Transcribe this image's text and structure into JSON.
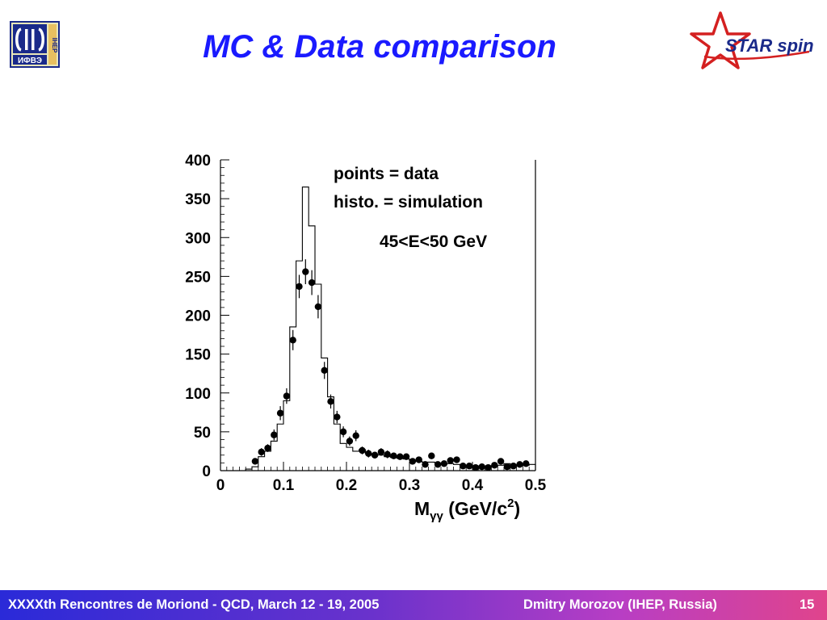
{
  "slide": {
    "title": "MC & Data comparison",
    "title_color": "#1a1aff",
    "ihep_logo_text": "ИФВЭ",
    "ihep_logo_side_text": "IHEP",
    "star_logo_text": "STAR spin",
    "star_logo_color": "#d42020",
    "star_text_color": "#1a2a8a"
  },
  "footer": {
    "left_text": "XXXXth Rencontres de Moriond - QCD, March 12 - 19, 2005",
    "right_text": "Dmitry Morozov (IHEP, Russia)",
    "page_number": "15"
  },
  "chart_data": {
    "type": "histogram",
    "xlabel_main": "M",
    "xlabel_sub": "γγ",
    "xlabel_unit": " (GeV/c",
    "xlabel_sup": "2",
    "xlabel_close": ")",
    "xlim": [
      0,
      0.5
    ],
    "ylim": [
      0,
      400
    ],
    "xticks": [
      "0",
      "0.1",
      "0.2",
      "0.3",
      "0.4",
      "0.5"
    ],
    "yticks": [
      "0",
      "50",
      "100",
      "150",
      "200",
      "250",
      "300",
      "350",
      "400"
    ],
    "grid": false,
    "legend": [
      {
        "text": "points = data"
      },
      {
        "text": "histo. = simulation"
      }
    ],
    "annotation": "45<E<50 GeV",
    "series": [
      {
        "name": "data",
        "kind": "points",
        "x": [
          0.055,
          0.065,
          0.075,
          0.085,
          0.095,
          0.105,
          0.115,
          0.125,
          0.135,
          0.145,
          0.155,
          0.165,
          0.175,
          0.185,
          0.195,
          0.205,
          0.215,
          0.225,
          0.235,
          0.245,
          0.255,
          0.265,
          0.275,
          0.285,
          0.295,
          0.305,
          0.315,
          0.325,
          0.335,
          0.345,
          0.355,
          0.365,
          0.375,
          0.385,
          0.395,
          0.405,
          0.415,
          0.425,
          0.435,
          0.445,
          0.455,
          0.465,
          0.475,
          0.485
        ],
        "y": [
          12,
          24,
          29,
          46,
          74,
          96,
          168,
          237,
          256,
          242,
          211,
          129,
          89,
          69,
          50,
          38,
          45,
          26,
          22,
          20,
          24,
          21,
          19,
          18,
          18,
          12,
          14,
          8,
          19,
          8,
          9,
          13,
          14,
          6,
          6,
          4,
          5,
          4,
          7,
          12,
          5,
          6,
          8,
          9
        ],
        "err": [
          4,
          5,
          5,
          7,
          9,
          10,
          13,
          15,
          16,
          16,
          15,
          11,
          9,
          8,
          7,
          6,
          7,
          5,
          5,
          4,
          5,
          5,
          4,
          4,
          4,
          3,
          4,
          3,
          4,
          3,
          3,
          4,
          4,
          2,
          2,
          2,
          2,
          2,
          3,
          3,
          2,
          2,
          3,
          3
        ]
      },
      {
        "name": "simulation",
        "kind": "step",
        "edges": [
          0.04,
          0.05,
          0.06,
          0.07,
          0.08,
          0.09,
          0.1,
          0.11,
          0.12,
          0.13,
          0.14,
          0.15,
          0.16,
          0.17,
          0.18,
          0.19,
          0.2,
          0.21,
          0.22,
          0.23,
          0.24,
          0.25,
          0.26,
          0.27,
          0.28,
          0.29,
          0.3,
          0.31,
          0.32,
          0.33,
          0.34,
          0.35,
          0.36,
          0.37,
          0.38,
          0.39,
          0.4,
          0.41,
          0.42,
          0.43,
          0.44,
          0.45,
          0.46,
          0.47,
          0.48,
          0.49,
          0.5
        ],
        "values": [
          2,
          5,
          18,
          25,
          38,
          60,
          90,
          185,
          270,
          365,
          315,
          240,
          145,
          95,
          60,
          35,
          30,
          25,
          27,
          22,
          21,
          20,
          18,
          17,
          16,
          15,
          13,
          12,
          11,
          11,
          10,
          9,
          9,
          8,
          7,
          7,
          6,
          6,
          6,
          5,
          7,
          9,
          7,
          6,
          7,
          8
        ]
      }
    ]
  }
}
